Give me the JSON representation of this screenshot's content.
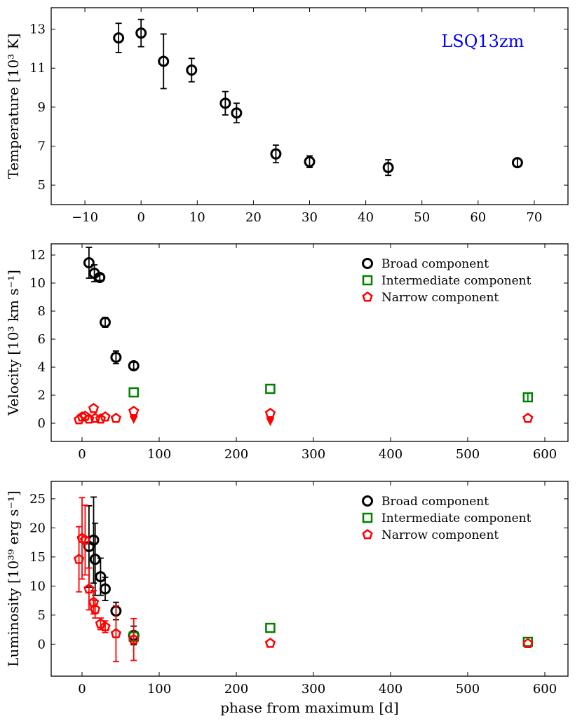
{
  "chart_data": [
    {
      "type": "scatter",
      "panel": "temperature",
      "ylabel": "Temperature [10³ K]",
      "xlabel": "",
      "xlim": [
        -16,
        76
      ],
      "ylim": [
        4,
        14.1
      ],
      "xticks": [
        -10,
        0,
        10,
        20,
        30,
        40,
        50,
        60,
        70
      ],
      "yticks": [
        5,
        7,
        9,
        11,
        13
      ],
      "annotation": {
        "text": "LSQ13zm",
        "color": "#0000ff"
      },
      "series": [
        {
          "name": "Temperature",
          "marker": "circle",
          "color": "#000000",
          "points": [
            {
              "x": -4,
              "y": 12.55,
              "err": 0.75
            },
            {
              "x": 0,
              "y": 12.8,
              "err": 0.7
            },
            {
              "x": 4,
              "y": 11.35,
              "err": 1.4
            },
            {
              "x": 9,
              "y": 10.9,
              "err": 0.6
            },
            {
              "x": 15,
              "y": 9.2,
              "err": 0.6
            },
            {
              "x": 17,
              "y": 8.7,
              "err": 0.5
            },
            {
              "x": 24,
              "y": 6.6,
              "err": 0.45
            },
            {
              "x": 30,
              "y": 6.2,
              "err": 0.3
            },
            {
              "x": 44,
              "y": 5.9,
              "err": 0.4
            },
            {
              "x": 67,
              "y": 6.15,
              "err": 0.2
            }
          ]
        }
      ]
    },
    {
      "type": "scatter",
      "panel": "velocity",
      "ylabel": "Velocity [10³ km s⁻¹]",
      "xlabel": "",
      "xlim": [
        -40,
        630
      ],
      "ylim": [
        -1.3,
        12.8
      ],
      "xticks": [
        0,
        100,
        200,
        300,
        400,
        500,
        600
      ],
      "yticks": [
        0,
        2,
        4,
        6,
        8,
        10,
        12
      ],
      "legend_position": "top-right",
      "series": [
        {
          "name": "Broad component",
          "marker": "circle",
          "color": "#000000",
          "points": [
            {
              "x": 9,
              "y": 11.45,
              "err": 1.1
            },
            {
              "x": 16,
              "y": 10.7,
              "err": 0.6
            },
            {
              "x": 23,
              "y": 10.4,
              "err": 0.2
            },
            {
              "x": 30,
              "y": 7.2,
              "err": 0.35
            },
            {
              "x": 44,
              "y": 4.7,
              "err": 0.45
            },
            {
              "x": 67,
              "y": 4.1,
              "err": 0.25
            }
          ]
        },
        {
          "name": "Intermediate component",
          "marker": "square",
          "color": "#008000",
          "points": [
            {
              "x": 67,
              "y": 2.2,
              "err": 0
            },
            {
              "x": 244,
              "y": 2.45,
              "err": 0
            },
            {
              "x": 578,
              "y": 1.85,
              "err": 0.3
            }
          ]
        },
        {
          "name": "Narrow component",
          "marker": "pentagon",
          "color": "#ff0000",
          "points": [
            {
              "x": -4,
              "y": 0.25,
              "err": 0
            },
            {
              "x": 0,
              "y": 0.45,
              "err": 0
            },
            {
              "x": 4,
              "y": 0.5,
              "err": 0
            },
            {
              "x": 9,
              "y": 0.3,
              "err": 0
            },
            {
              "x": 15,
              "y": 1.05,
              "err": 0
            },
            {
              "x": 17,
              "y": 0.35,
              "err": 0
            },
            {
              "x": 24,
              "y": 0.3,
              "err": 0
            },
            {
              "x": 30,
              "y": 0.45,
              "err": 0
            },
            {
              "x": 44,
              "y": 0.35,
              "err": 0
            },
            {
              "x": 67,
              "y": 0.85,
              "err": 0
            },
            {
              "x": 244,
              "y": 0.7,
              "err": 0
            },
            {
              "x": 578,
              "y": 0.35,
              "err": 0
            }
          ],
          "upper_limits": [
            {
              "x": 67,
              "y": 0.25
            },
            {
              "x": 244,
              "y": 0.1
            }
          ]
        }
      ]
    },
    {
      "type": "scatter",
      "panel": "luminosity",
      "ylabel": "Luminosity [10³⁹ erg s⁻¹]",
      "xlabel": "phase from maximum [d]",
      "xlim": [
        -40,
        630
      ],
      "ylim": [
        -5.5,
        28
      ],
      "xticks": [
        0,
        100,
        200,
        300,
        400,
        500,
        600
      ],
      "yticks": [
        0,
        5,
        10,
        15,
        20,
        25
      ],
      "legend_position": "top-right",
      "series": [
        {
          "name": "Broad component",
          "marker": "circle",
          "color": "#000000",
          "points": [
            {
              "x": 9,
              "y": 16.8,
              "err": 7
            },
            {
              "x": 15,
              "y": 17.9,
              "err": 7.4
            },
            {
              "x": 17,
              "y": 14.6,
              "err": 6.2
            },
            {
              "x": 24,
              "y": 11.6,
              "err": 3.2
            },
            {
              "x": 30,
              "y": 9.5,
              "err": 2
            },
            {
              "x": 44,
              "y": 5.7,
              "err": 1.5
            },
            {
              "x": 67,
              "y": 1.5,
              "err": 1.6
            }
          ]
        },
        {
          "name": "Intermediate component",
          "marker": "square",
          "color": "#008000",
          "points": [
            {
              "x": 67,
              "y": 1.3,
              "err": 0
            },
            {
              "x": 244,
              "y": 2.8,
              "err": 0
            },
            {
              "x": 578,
              "y": 0.4,
              "err": 0
            }
          ]
        },
        {
          "name": "Narrow component",
          "marker": "pentagon",
          "color": "#ff0000",
          "points": [
            {
              "x": -4,
              "y": 14.6,
              "err": 5.6
            },
            {
              "x": 0,
              "y": 18.2,
              "err": 7
            },
            {
              "x": 4,
              "y": 17.9,
              "err": 6
            },
            {
              "x": 9,
              "y": 9.5,
              "err": 3.6
            },
            {
              "x": 15,
              "y": 7.2,
              "err": 2
            },
            {
              "x": 17,
              "y": 6,
              "err": 1.5
            },
            {
              "x": 24,
              "y": 3.5,
              "err": 1
            },
            {
              "x": 30,
              "y": 3,
              "err": 1
            },
            {
              "x": 44,
              "y": 1.8,
              "err": 4.8
            },
            {
              "x": 67,
              "y": 0.8,
              "err": 3.6
            },
            {
              "x": 244,
              "y": 0.15,
              "err": 0
            },
            {
              "x": 578,
              "y": 0.1,
              "err": 0
            }
          ]
        }
      ]
    }
  ]
}
